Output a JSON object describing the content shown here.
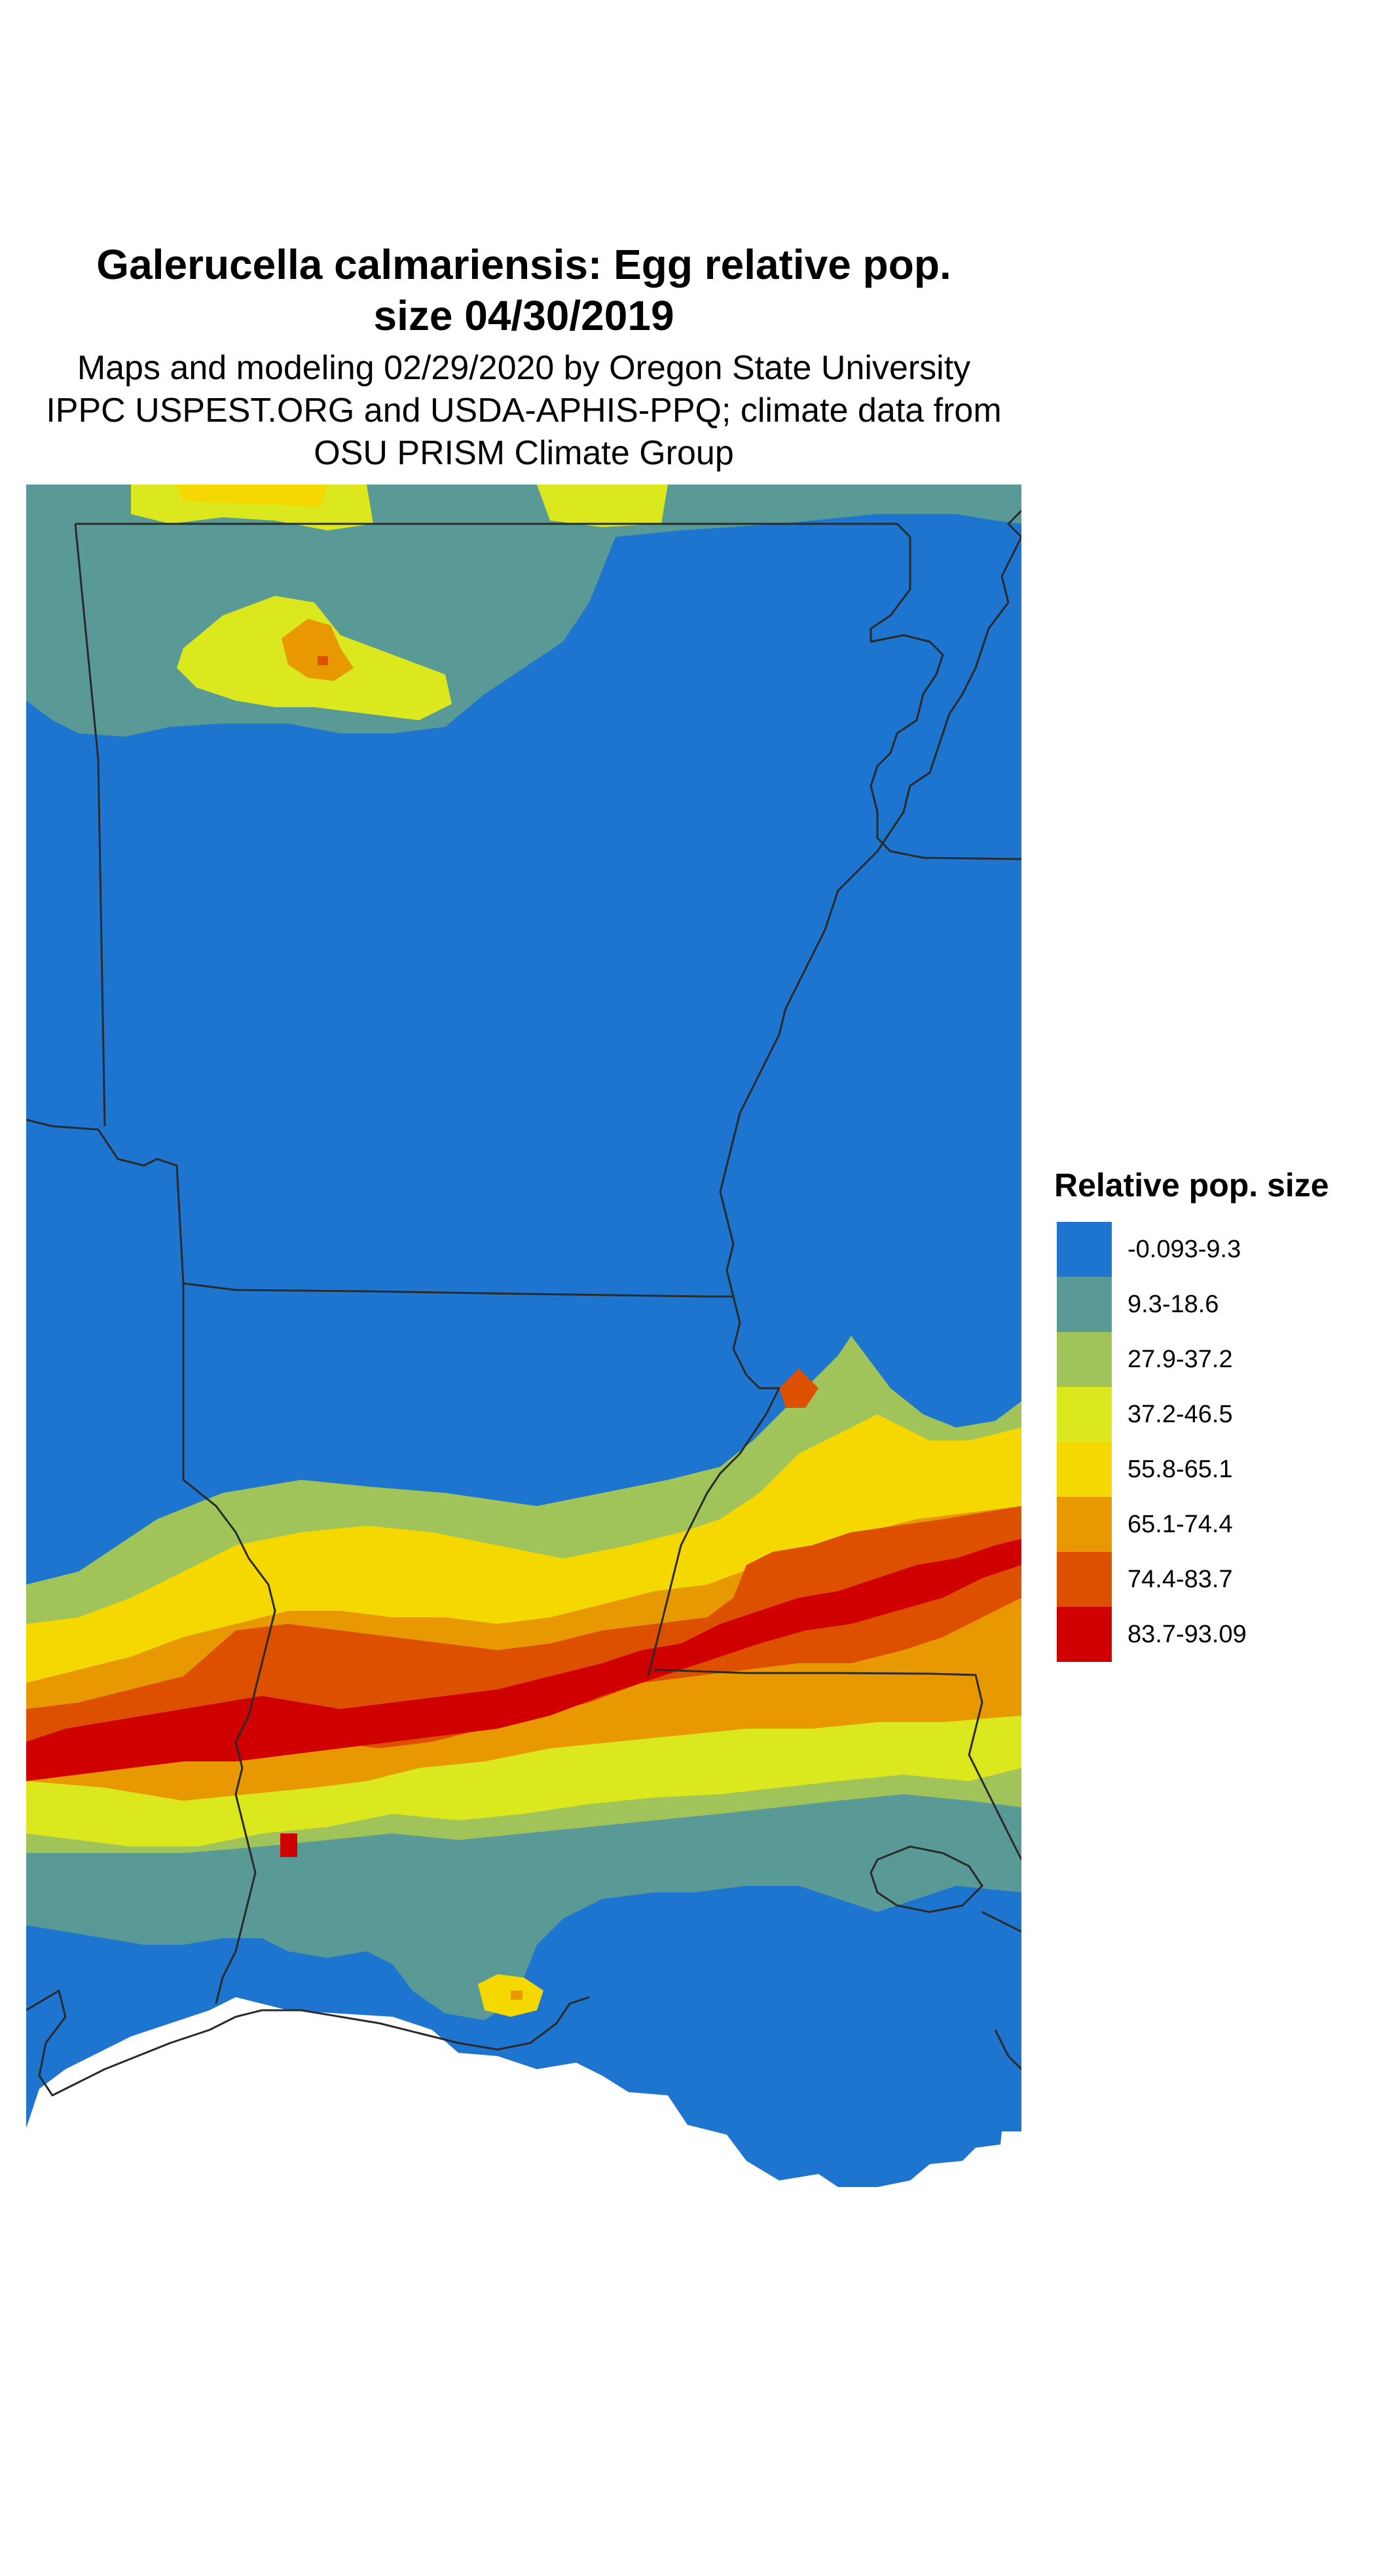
{
  "title_lines": [
    "Galerucella calmariensis: Egg relative pop.",
    "size 04/30/2019"
  ],
  "subtitle_lines": [
    "Maps and modeling 02/29/2020 by Oregon State University",
    "IPPC USPEST.ORG and USDA-APHIS-PPQ; climate data from",
    "OSU PRISM Climate Group"
  ],
  "legend": {
    "title": "Relative pop. size",
    "items": [
      {
        "label": "-0.093-9.3",
        "color": "#1e75d0"
      },
      {
        "label": "9.3-18.6",
        "color": "#5a9a96"
      },
      {
        "label": "27.9-37.2",
        "color": "#a0c45a"
      },
      {
        "label": "37.2-46.5",
        "color": "#dce81e"
      },
      {
        "label": "55.8-65.1",
        "color": "#f5d800"
      },
      {
        "label": "65.1-74.4",
        "color": "#e89800"
      },
      {
        "label": "74.4-83.7",
        "color": "#dc5000"
      },
      {
        "label": "83.7-93.09",
        "color": "#d00000"
      }
    ]
  },
  "map": {
    "boundary_color": "#2a2a2a",
    "background_color": "#ffffff"
  }
}
